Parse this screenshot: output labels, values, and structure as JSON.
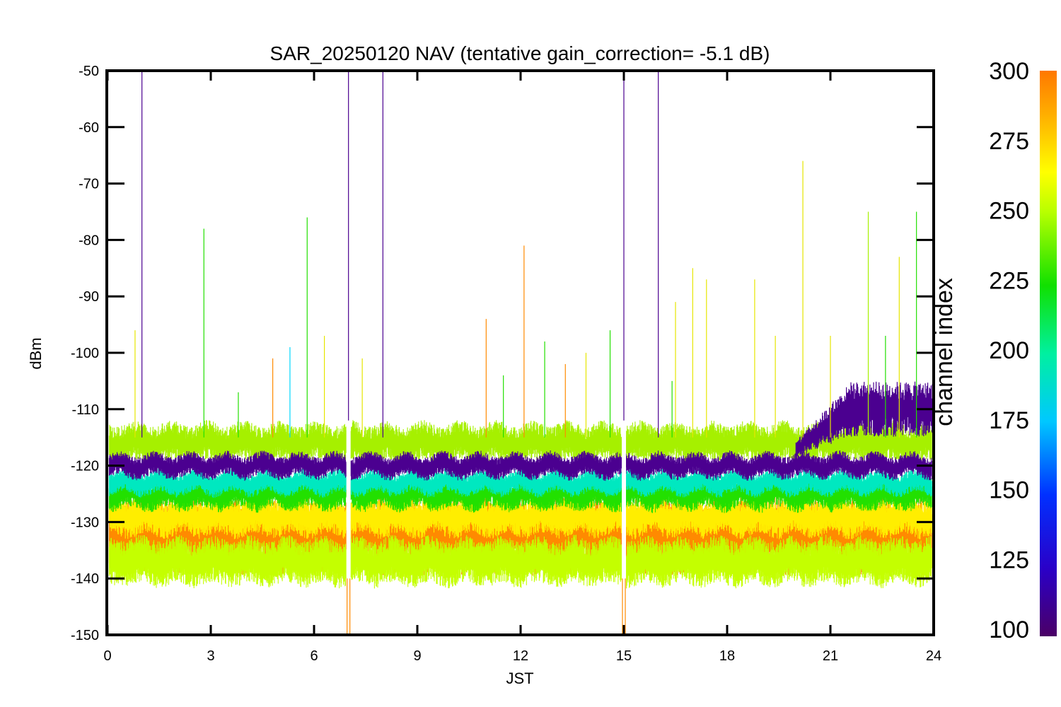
{
  "chart_data": {
    "type": "line",
    "title": "SAR_20250120 NAV (tentative gain_correction= -5.1 dB)",
    "xlabel": "JST",
    "ylabel": "dBm",
    "xlim": [
      0,
      24
    ],
    "ylim": [
      -150,
      -50
    ],
    "x_ticks": [
      "0",
      "3",
      "6",
      "9",
      "12",
      "15",
      "18",
      "21",
      "24"
    ],
    "y_ticks": [
      "-50",
      "-60",
      "-70",
      "-80",
      "-90",
      "-100",
      "-110",
      "-120",
      "-130",
      "-140",
      "-150"
    ],
    "grid": false,
    "gaps_jst": [
      7.0,
      15.0
    ],
    "colorbar": {
      "label": "channel index",
      "range": [
        100,
        300
      ],
      "ticks": [
        "300",
        "275",
        "250",
        "225",
        "200",
        "175",
        "150",
        "125",
        "100"
      ],
      "colormap": "rainbow"
    },
    "bands": [
      {
        "channel_index": 300,
        "color": "#ff8a00",
        "center_dbm": -132,
        "spread_dbm": 5
      },
      {
        "channel_index": 275,
        "color": "#ffee00",
        "center_dbm": -129,
        "spread_dbm": 2.5
      },
      {
        "channel_index": 265,
        "color": "#c4ff00",
        "center_dbm": -137,
        "spread_dbm": 3
      },
      {
        "channel_index": 255,
        "color": "#a6f000",
        "center_dbm": -116,
        "spread_dbm": 2.5
      },
      {
        "channel_index": 230,
        "color": "#22e000",
        "center_dbm": -125,
        "spread_dbm": 2
      },
      {
        "channel_index": 190,
        "color": "#00e8c0",
        "center_dbm": -123,
        "spread_dbm": 1.5
      },
      {
        "channel_index": 110,
        "color": "#4b0090",
        "center_dbm": -120,
        "spread_dbm": 1.5
      }
    ],
    "rising_band": {
      "channel_index": 110,
      "color": "#4b0090",
      "start_jst": 20.0,
      "end_jst": 24.0,
      "peak_dbm": -110
    },
    "spikes": [
      {
        "x": 0.8,
        "y": -96,
        "color": "#e6e600"
      },
      {
        "x": 1.0,
        "y": -50,
        "color": "#4b0090"
      },
      {
        "x": 2.8,
        "y": -78,
        "color": "#22e000"
      },
      {
        "x": 3.8,
        "y": -107,
        "color": "#22e000"
      },
      {
        "x": 4.8,
        "y": -101,
        "color": "#ff8a00"
      },
      {
        "x": 5.3,
        "y": -99,
        "color": "#00d8ff"
      },
      {
        "x": 5.8,
        "y": -76,
        "color": "#22e000"
      },
      {
        "x": 6.3,
        "y": -97,
        "color": "#e6e600"
      },
      {
        "x": 7.0,
        "y": -50,
        "color": "#4b0090"
      },
      {
        "x": 7.4,
        "y": -101,
        "color": "#e6e600"
      },
      {
        "x": 8.0,
        "y": -50,
        "color": "#4b0090"
      },
      {
        "x": 11.0,
        "y": -94,
        "color": "#ff8a00"
      },
      {
        "x": 11.5,
        "y": -104,
        "color": "#22e000"
      },
      {
        "x": 12.1,
        "y": -81,
        "color": "#ff8a00"
      },
      {
        "x": 12.7,
        "y": -98,
        "color": "#22e000"
      },
      {
        "x": 13.3,
        "y": -102,
        "color": "#ff8a00"
      },
      {
        "x": 13.9,
        "y": -100,
        "color": "#e6e600"
      },
      {
        "x": 14.6,
        "y": -96,
        "color": "#22e000"
      },
      {
        "x": 15.0,
        "y": -50,
        "color": "#4b0090"
      },
      {
        "x": 16.0,
        "y": -50,
        "color": "#4b0090"
      },
      {
        "x": 16.4,
        "y": -105,
        "color": "#22e000"
      },
      {
        "x": 16.5,
        "y": -91,
        "color": "#e6e600"
      },
      {
        "x": 17.0,
        "y": -85,
        "color": "#e6e600"
      },
      {
        "x": 17.4,
        "y": -87,
        "color": "#e6e600"
      },
      {
        "x": 18.8,
        "y": -87,
        "color": "#e6e600"
      },
      {
        "x": 19.4,
        "y": -97,
        "color": "#e6e600"
      },
      {
        "x": 20.2,
        "y": -66,
        "color": "#e6e600"
      },
      {
        "x": 21.0,
        "y": -97,
        "color": "#e6e600"
      },
      {
        "x": 22.1,
        "y": -75,
        "color": "#a6f000"
      },
      {
        "x": 22.6,
        "y": -97,
        "color": "#22e000"
      },
      {
        "x": 23.0,
        "y": -83,
        "color": "#e6e600"
      },
      {
        "x": 23.5,
        "y": -75,
        "color": "#22e000"
      }
    ]
  }
}
